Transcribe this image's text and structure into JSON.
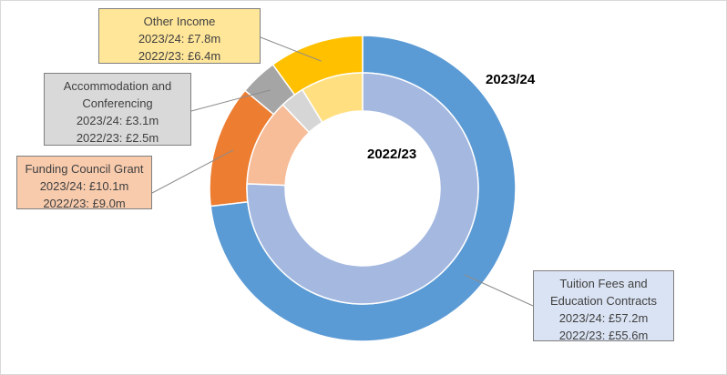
{
  "chart_data": {
    "type": "pie",
    "variant": "nested-doughnut",
    "series": [
      {
        "name": "2023/24",
        "ring": "outer",
        "values": [
          57.2,
          10.1,
          3.1,
          7.8
        ]
      },
      {
        "name": "2022/23",
        "ring": "inner",
        "values": [
          55.6,
          9.0,
          2.5,
          6.4
        ]
      }
    ],
    "categories": [
      "Tuition Fees and Education Contracts",
      "Funding Council Grant",
      "Accommodation and Conferencing",
      "Other Income"
    ],
    "colors": {
      "outer": [
        "#5b9bd5",
        "#ed7d31",
        "#a5a5a5",
        "#ffc000"
      ],
      "inner": [
        "#a4b8e0",
        "#f7bc98",
        "#d6d6d6",
        "#ffdf80"
      ],
      "callout_fill": [
        "#dae3f3",
        "#f8cbad",
        "#d9d9d9",
        "#ffe699"
      ]
    },
    "callouts": [
      {
        "lines": [
          "Tuition Fees and",
          "Education Contracts",
          "2023/24: £57.2m",
          "2022/23: £55.6m"
        ]
      },
      {
        "lines": [
          "Funding Council Grant",
          "2023/24: £10.1m",
          "2022/23: £9.0m"
        ]
      },
      {
        "lines": [
          "Accommodation and",
          "Conferencing",
          "2023/24: £3.1m",
          "2022/23: £2.5m"
        ]
      },
      {
        "lines": [
          "Other Income",
          "2023/24: £7.8m",
          "2022/23: £6.4m"
        ]
      }
    ]
  }
}
